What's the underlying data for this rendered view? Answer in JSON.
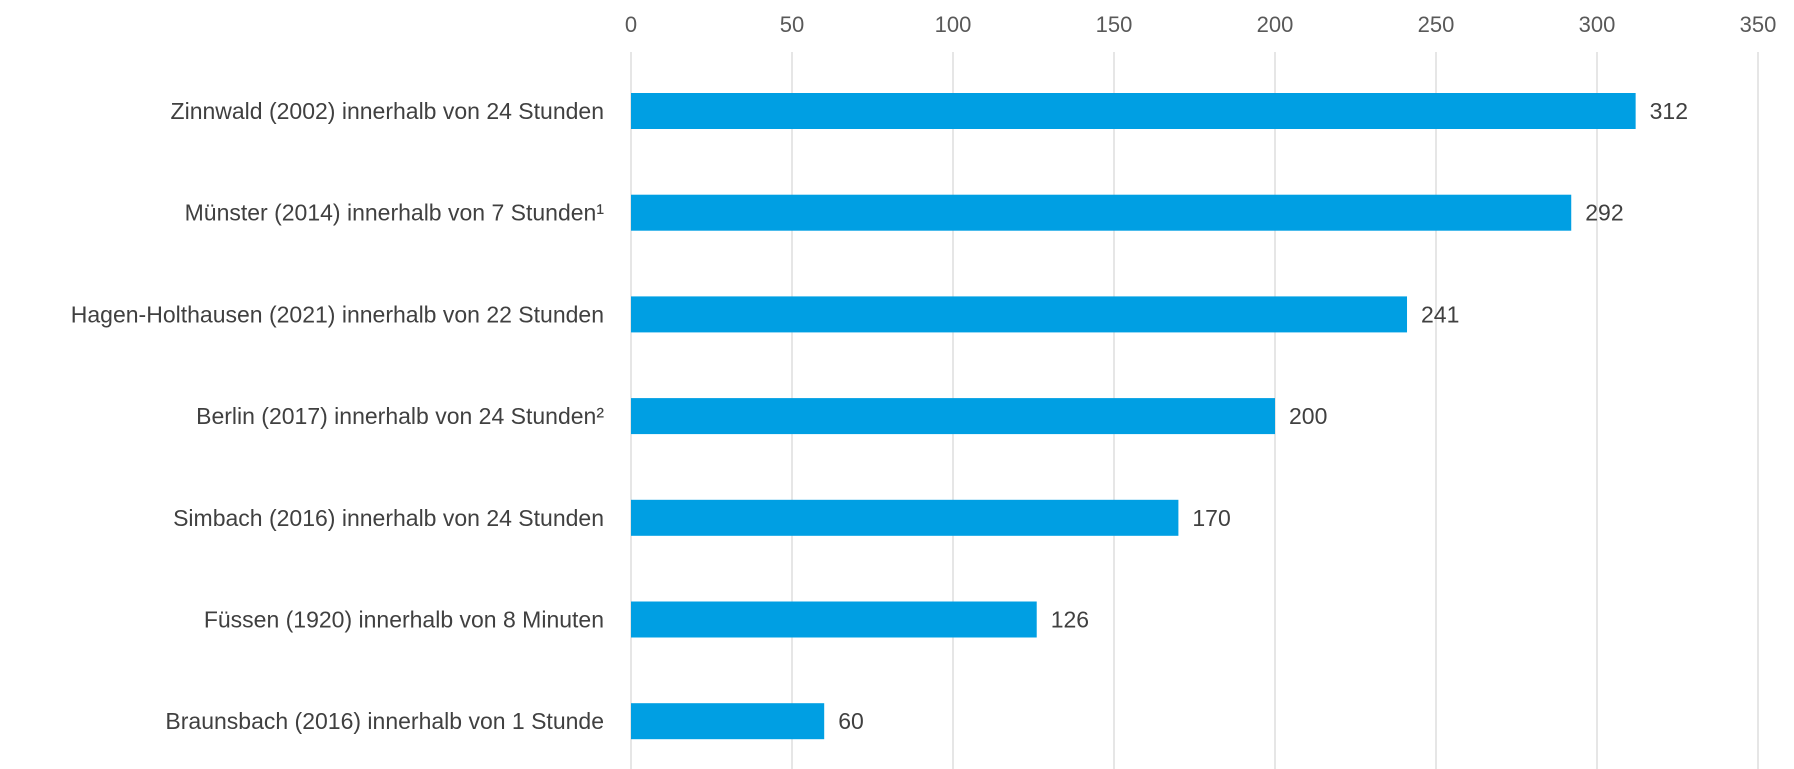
{
  "chart_data": {
    "type": "bar",
    "orientation": "horizontal",
    "title": "",
    "xlabel": "",
    "ylabel": "",
    "categories": [
      "Zinnwald (2002) innerhalb von 24 Stunden",
      "Münster (2014) innerhalb von 7 Stunden¹",
      "Hagen-Holthausen (2021) innerhalb von 22 Stunden",
      "Berlin (2017) innerhalb von 24 Stunden²",
      "Simbach (2016) innerhalb von 24 Stunden",
      "Füssen (1920) innerhalb von 8 Minuten",
      "Braunsbach (2016) innerhalb von 1 Stunde"
    ],
    "values": [
      312,
      292,
      241,
      200,
      170,
      126,
      60
    ],
    "data_labels": [
      "312",
      "292",
      "241",
      "200",
      "170",
      "126",
      "60"
    ],
    "xlim": [
      0,
      350
    ],
    "ticks": [
      0,
      50,
      100,
      150,
      200,
      250,
      300,
      350
    ],
    "tick_labels": [
      "0",
      "50",
      "100",
      "150",
      "200",
      "250",
      "300",
      "350"
    ],
    "axis_position": "top",
    "grid": true,
    "legend": "none",
    "bar_color": "#009fe3",
    "grid_color": "#d9d9d9",
    "text_color": "#404040"
  }
}
